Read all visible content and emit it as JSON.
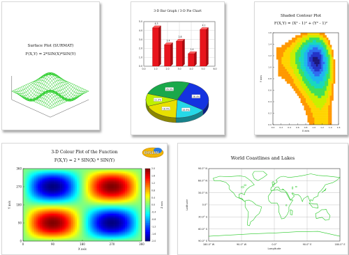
{
  "panels": {
    "surface": {
      "title": "Surface Plot (SURMAT)",
      "formula": "F(X,Y) = 2*SIN(X)*SIN(Y)",
      "line_color": "#22cc22"
    },
    "bar_pie": {
      "title": "3-D Bar Graph / 3-D Pie Chart",
      "bar_color": "#e8141c",
      "chart_data": {
        "type": "bar",
        "categories": [
          "1.0",
          "2.0",
          "3.0",
          "4.0",
          "5.0"
        ],
        "values": [
          4.3,
          2.4,
          2.8,
          1.4,
          4.1
        ],
        "value_labels": [
          "4.3",
          "2.4",
          "2.8",
          "1.4",
          "4.1"
        ],
        "x_ticks": [
          "0.0",
          "1.0",
          "2.0",
          "3.0",
          "4.0",
          "5.0",
          "6.0"
        ],
        "y_ticks": [
          "0.0",
          "1.0",
          "2.0",
          "3.0",
          "4.0",
          "5.0"
        ],
        "xlim": [
          0,
          6
        ],
        "ylim": [
          0,
          5
        ],
        "grid": true
      },
      "pie_data": {
        "type": "pie",
        "labels": [
          "28.4%",
          "15.9%",
          "18.4%",
          "11.3%",
          "26.0%"
        ],
        "values": [
          28.4,
          15.9,
          18.4,
          11.3,
          26.0
        ],
        "colors": [
          "#1433e0",
          "#26d8e8",
          "#e8e000",
          "#bff000",
          "#1aa84a"
        ]
      }
    },
    "contour": {
      "title": "Shaded Contour Plot",
      "formula": "F(X,Y) = (X² - 1)² + (Y² - 1)²",
      "xlabel": "X axis",
      "ylabel": "Y axis",
      "x_ticks": [
        "0.0",
        "0.2",
        "0.4",
        "0.6",
        "0.8",
        "1.0",
        "1.2",
        "1.4",
        "1.6"
      ],
      "y_ticks": [
        "0.0",
        "0.2",
        "0.4",
        "0.6",
        "0.8",
        "1.0",
        "1.2",
        "1.4",
        "1.6"
      ],
      "colors": [
        "#ff9800",
        "#ffd400",
        "#c8f000",
        "#3fe05a",
        "#18d8c0",
        "#1fb4f0",
        "#2f6cf0",
        "#2434c8",
        "#1c167a"
      ],
      "chart_data": {
        "type": "heatmap",
        "levels": 9,
        "xlim": [
          0,
          1.6
        ],
        "ylim": [
          0,
          1.6
        ]
      }
    },
    "colour": {
      "title": "3-D Colour Plot of the Function",
      "formula": "F(X,Y) = 2 * SIN(X) * SIN(Y)",
      "xlabel": "X axis",
      "ylabel": "Y axis",
      "zlabel": "Z axis",
      "x_ticks": [
        "0",
        "90",
        "180",
        "270",
        "360"
      ],
      "y_ticks": [
        "0",
        "90",
        "180",
        "270",
        "360"
      ],
      "colorbar_ticks": [
        "2.0",
        "1.6",
        "1.2",
        "0.8",
        "0.4",
        "0.0",
        "-0.4",
        "-0.8",
        "-1.2",
        "-1.6",
        "-2.0"
      ],
      "logo_text": "DISLIN",
      "chart_data": {
        "type": "heatmap",
        "xlim": [
          0,
          360
        ],
        "ylim": [
          0,
          360
        ],
        "zlim": [
          -2,
          2
        ]
      }
    },
    "world": {
      "title": "World Coastlines and Lakes",
      "xlabel": "Longitude",
      "ylabel": "Latitude",
      "x_ticks": [
        "180.0° W",
        "90.0° W",
        "0.0°",
        "90.0° E",
        "180.0° E"
      ],
      "y_ticks": [
        "90.0° N",
        "60.0° N",
        "30.0° N",
        "0.0°",
        "30.0° S",
        "60.0° S",
        "90.0° S"
      ],
      "line_color": "#22c822"
    }
  }
}
